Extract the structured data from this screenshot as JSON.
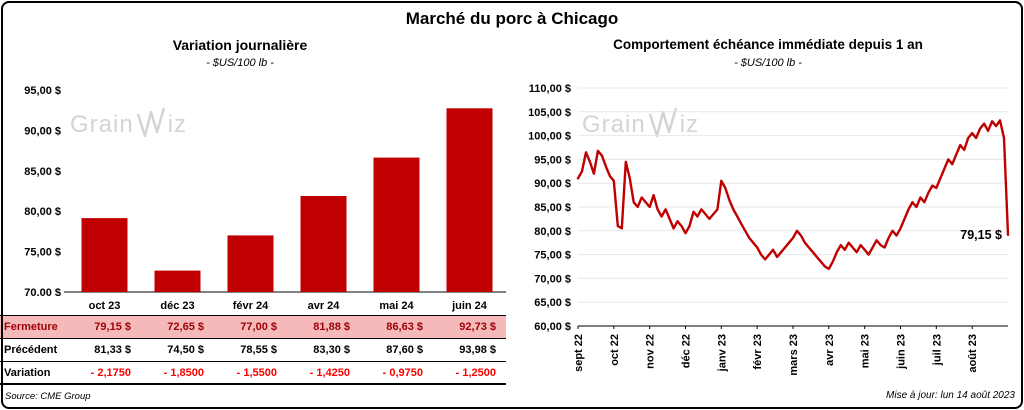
{
  "header": {
    "title": "Marché du porc à Chicago"
  },
  "watermark": {
    "part1": "Grain",
    "part2": "iz"
  },
  "footer": {
    "source": "Source: CME Group",
    "updated": "Mise à jour: lun 14 août 2023"
  },
  "table": {
    "categories": [
      "oct 23",
      "déc 23",
      "févr 24",
      "avr 24",
      "mai 24",
      "juin 24"
    ],
    "rows": [
      {
        "label": "Fermeture",
        "style": "fermeture",
        "values": [
          "79,15 $",
          "72,65 $",
          "77,00 $",
          "81,88 $",
          "86,63 $",
          "92,73 $"
        ]
      },
      {
        "label": "Précédent",
        "style": "precedent",
        "values": [
          "81,33 $",
          "74,50 $",
          "78,55 $",
          "83,30 $",
          "87,60 $",
          "93,98 $"
        ]
      },
      {
        "label": "Variation",
        "style": "variation",
        "values": [
          "- 2,1750",
          "- 1,8500",
          "- 1,5500",
          "- 1,4250",
          "- 0,9750",
          "- 1,2500"
        ]
      }
    ]
  },
  "chart_data": [
    {
      "type": "bar",
      "title": "Variation journalière",
      "subtitle": "- $US/100 lb -",
      "categories": [
        "oct 23",
        "déc 23",
        "févr 24",
        "avr 24",
        "mai 24",
        "juin 24"
      ],
      "values": [
        79.15,
        72.65,
        77.0,
        81.88,
        86.63,
        92.73
      ],
      "ylim": [
        70,
        95
      ],
      "ytick_step": 5,
      "bar_color": "#C00000",
      "grid": false,
      "ylabel": "$US/100 lb"
    },
    {
      "type": "line",
      "title": "Comportement échéance immédiate depuis 1 an",
      "subtitle": "- $US/100 lb -",
      "x_tick_labels": [
        "sept 22",
        "oct 22",
        "nov 22",
        "déc 22",
        "janv 23",
        "févr 23",
        "mars 23",
        "avr 23",
        "mai 23",
        "juin 23",
        "juil 23",
        "août 23"
      ],
      "x_tick_indices": [
        0,
        9,
        18,
        27,
        36,
        45,
        54,
        63,
        72,
        81,
        90,
        99
      ],
      "values": [
        91.0,
        92.5,
        96.5,
        94.5,
        92.0,
        96.8,
        95.8,
        93.5,
        91.5,
        90.5,
        81.0,
        80.5,
        94.5,
        91.0,
        86.0,
        85.0,
        87.0,
        86.0,
        85.0,
        87.5,
        84.5,
        83.0,
        84.5,
        82.5,
        80.5,
        82.0,
        81.0,
        79.5,
        81.0,
        84.0,
        83.0,
        84.5,
        83.5,
        82.5,
        83.5,
        84.5,
        90.5,
        89.0,
        86.5,
        84.5,
        83.0,
        81.5,
        80.0,
        78.5,
        77.5,
        76.5,
        75.0,
        74.0,
        75.0,
        76.0,
        74.5,
        75.5,
        76.5,
        77.5,
        78.5,
        80.0,
        79.0,
        77.5,
        76.5,
        75.5,
        74.5,
        73.5,
        72.5,
        72.0,
        73.5,
        75.5,
        77.0,
        76.0,
        77.5,
        76.5,
        75.5,
        77.0,
        76.0,
        75.0,
        76.5,
        78.0,
        77.0,
        76.5,
        78.5,
        80.0,
        79.0,
        80.5,
        82.5,
        84.5,
        86.0,
        85.0,
        87.0,
        86.0,
        88.0,
        89.5,
        89.0,
        91.0,
        93.0,
        95.0,
        94.0,
        96.0,
        98.0,
        97.0,
        99.5,
        100.5,
        99.5,
        101.5,
        102.5,
        101.0,
        103.0,
        102.0,
        103.2,
        99.5,
        79.15
      ],
      "last_value": 79.15,
      "last_value_label": "79,15 $",
      "ylim": [
        60,
        110
      ],
      "ytick_step": 5,
      "line_color": "#C00000",
      "grid": true,
      "ylabel": "$US/100 lb"
    }
  ]
}
